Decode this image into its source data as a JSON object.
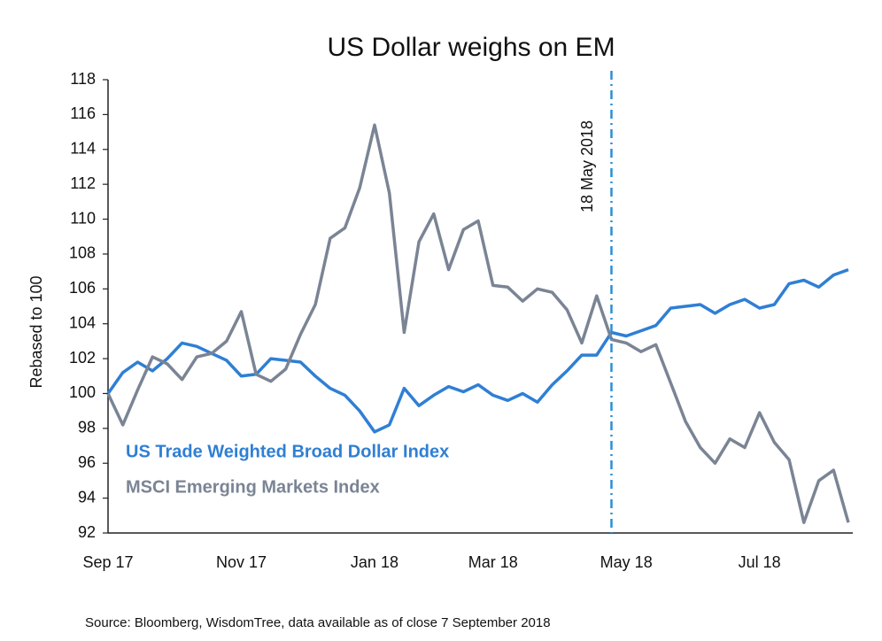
{
  "chart_data": {
    "type": "line",
    "title": "US Dollar weighs on EM",
    "y_label": "Rebased to 100",
    "source": "Source: Bloomberg, WisdomTree, data available as of close 7 September 2018",
    "categories": [
      "Sep 17",
      null,
      null,
      null,
      null,
      null,
      null,
      null,
      null,
      "Nov 17",
      null,
      null,
      null,
      null,
      null,
      null,
      null,
      null,
      "Jan 18",
      null,
      null,
      null,
      null,
      null,
      null,
      null,
      "Mar 18",
      null,
      null,
      null,
      null,
      null,
      null,
      null,
      null,
      "May 18",
      null,
      null,
      null,
      null,
      null,
      null,
      null,
      null,
      "Jul 18",
      null,
      null,
      null,
      null,
      null,
      null
    ],
    "series": [
      {
        "name": "US Trade Weighted Broad Dollar Index",
        "color": "#2f7fd4",
        "values": [
          100,
          101.2,
          101.8,
          101.3,
          102.0,
          102.9,
          102.7,
          102.3,
          101.9,
          101.0,
          101.1,
          102.0,
          101.9,
          101.8,
          101.0,
          100.3,
          99.9,
          99.0,
          97.8,
          98.2,
          100.3,
          99.3,
          99.9,
          100.4,
          100.1,
          100.5,
          99.9,
          99.6,
          100.0,
          99.5,
          100.5,
          101.3,
          102.2,
          102.2,
          103.5,
          103.3,
          103.6,
          103.9,
          104.9,
          105.0,
          105.1,
          104.6,
          105.1,
          105.4,
          104.9,
          105.1,
          106.3,
          106.5,
          106.1,
          106.8,
          107.1
        ]
      },
      {
        "name": "MSCI Emerging Markets Index",
        "color": "#7a8494",
        "values": [
          100,
          98.2,
          100.2,
          102.1,
          101.7,
          100.8,
          102.1,
          102.3,
          103.0,
          104.7,
          101.1,
          100.7,
          101.4,
          103.4,
          105.1,
          108.9,
          109.5,
          111.8,
          115.4,
          111.5,
          103.5,
          108.7,
          110.3,
          107.1,
          109.4,
          109.9,
          106.2,
          106.1,
          105.3,
          106.0,
          105.8,
          104.8,
          102.9,
          105.6,
          103.1,
          102.9,
          102.4,
          102.8,
          100.6,
          98.4,
          96.9,
          96.0,
          97.4,
          96.9,
          98.9,
          97.2,
          96.2,
          92.6,
          95.0,
          95.6,
          92.6
        ]
      }
    ],
    "annotation": {
      "text": "18 May 2018",
      "x": 34,
      "color": "#2b8fd6"
    },
    "ylim": [
      92,
      118
    ],
    "yticks": [
      92,
      94,
      96,
      98,
      100,
      102,
      104,
      106,
      108,
      110,
      112,
      114,
      116,
      118
    ],
    "grid": false
  }
}
